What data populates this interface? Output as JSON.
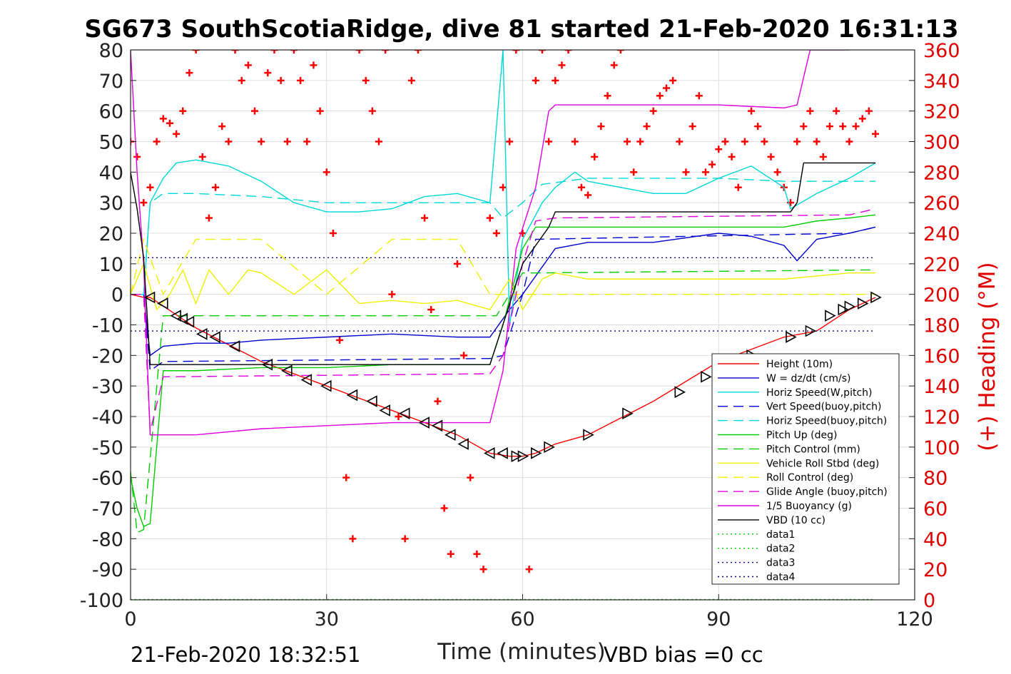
{
  "chart_data": {
    "type": "line",
    "title": "SG673 SouthScotiaRidge, dive 81 started 21-Feb-2020 16:31:13",
    "xlabel": "Time (minutes)",
    "ylabel_right": "(+) Heading (°M)",
    "xlim": [
      0,
      120
    ],
    "ylim_left": [
      -100,
      80
    ],
    "ylim_right": [
      0,
      360
    ],
    "xticks": [
      "0",
      "30",
      "60",
      "90",
      "120"
    ],
    "yticks_left": [
      "80",
      "70",
      "60",
      "50",
      "40",
      "30",
      "20",
      "10",
      "0",
      "-10",
      "-20",
      "-30",
      "-40",
      "-50",
      "-60",
      "-70",
      "-80",
      "-90",
      "-100"
    ],
    "yticks_right": [
      "360",
      "340",
      "320",
      "300",
      "280",
      "260",
      "240",
      "220",
      "200",
      "180",
      "160",
      "140",
      "120",
      "100",
      "80",
      "60",
      "40",
      "20",
      "0"
    ],
    "grid": true,
    "legend_position": "bottom-right",
    "footer_left": "21-Feb-2020 18:32:51",
    "footer_right": "VBD bias =0 cc",
    "series": [
      {
        "name": "Height (10m)",
        "color": "#ff0000",
        "style": "solid",
        "x": [
          0,
          2,
          3,
          10,
          20,
          30,
          40,
          50,
          55,
          58,
          60,
          62,
          65,
          70,
          80,
          90,
          100,
          105,
          110,
          114
        ],
        "y": [
          0,
          -1,
          -1,
          -11,
          -22,
          -30,
          -38,
          -46,
          -52,
          -53,
          -53,
          -52,
          -49,
          -46,
          -35,
          -22,
          -14,
          -12,
          -5,
          -1
        ]
      },
      {
        "name": "W = dz/dt (cm/s)",
        "color": "#0000cc",
        "style": "solid",
        "x": [
          0,
          2,
          3,
          5,
          10,
          15,
          20,
          30,
          40,
          50,
          55,
          58,
          60,
          65,
          70,
          80,
          90,
          95,
          100,
          102,
          105,
          110,
          114
        ],
        "y": [
          0,
          0,
          -20,
          -17,
          -16,
          -16,
          -15,
          -14,
          -13,
          -14,
          -14,
          -5,
          0,
          15,
          17,
          17,
          20,
          19,
          16,
          11,
          18,
          20,
          22
        ]
      },
      {
        "name": "Horiz Speed(W,pitch)",
        "color": "#00d8d8",
        "style": "solid",
        "x": [
          0,
          2,
          3,
          5,
          7,
          10,
          15,
          20,
          25,
          30,
          35,
          40,
          45,
          50,
          55,
          57,
          58,
          60,
          63,
          65,
          68,
          70,
          75,
          80,
          85,
          90,
          95,
          100,
          101,
          105,
          110,
          114
        ],
        "y": [
          0,
          0,
          30,
          38,
          43,
          44,
          42,
          37,
          30,
          27,
          27,
          28,
          32,
          33,
          30,
          80,
          -10,
          18,
          30,
          35,
          40,
          37,
          35,
          33,
          33,
          38,
          42,
          35,
          28,
          33,
          38,
          43
        ]
      },
      {
        "name": "Vert Speed(buoy,pitch)",
        "color": "#0000cc",
        "style": "dashed",
        "x": [
          0,
          2,
          3,
          5,
          55,
          57,
          60,
          62,
          110,
          114
        ],
        "y": [
          0,
          0,
          -25,
          -22,
          -21,
          -20,
          0,
          18,
          20,
          22
        ]
      },
      {
        "name": "Horiz Speed(buoy,pitch)",
        "color": "#00d8d8",
        "style": "dashed",
        "x": [
          0,
          2,
          3,
          5,
          10,
          20,
          30,
          40,
          50,
          55,
          57,
          60,
          63,
          70,
          80,
          90,
          100,
          110,
          114
        ],
        "y": [
          0,
          0,
          30,
          33,
          33,
          32,
          30,
          30,
          30,
          30,
          25,
          30,
          36,
          38,
          38,
          38,
          37,
          37,
          37
        ]
      },
      {
        "name": "Pitch Up (deg)",
        "color": "#00cc00",
        "style": "solid",
        "x": [
          0,
          1,
          2,
          3,
          5,
          10,
          20,
          30,
          40,
          50,
          55,
          57,
          60,
          62,
          65,
          70,
          80,
          90,
          100,
          105,
          110,
          114
        ],
        "y": [
          -60,
          -70,
          -76,
          -75,
          -25,
          -25,
          -24,
          -24,
          -23,
          -23,
          -23,
          -10,
          15,
          22,
          22,
          22,
          22,
          22,
          22,
          24,
          25,
          26
        ]
      },
      {
        "name": "Pitch Control (mm)",
        "color": "#00cc00",
        "style": "dashed",
        "x": [
          0,
          1,
          2,
          5,
          55,
          56,
          60,
          62,
          114
        ],
        "y": [
          -58,
          -78,
          -77,
          -7,
          -7,
          -7,
          7,
          7,
          8
        ]
      },
      {
        "name": "Vehicle Roll Stbd (deg)",
        "color": "#f0f000",
        "style": "solid",
        "x": [
          0,
          2,
          4,
          6,
          8,
          10,
          12,
          15,
          18,
          20,
          25,
          30,
          35,
          40,
          45,
          50,
          55,
          58,
          60,
          63,
          65,
          70,
          80,
          90,
          100,
          110,
          114
        ],
        "y": [
          0,
          10,
          -5,
          0,
          8,
          -3,
          8,
          0,
          8,
          7,
          0,
          8,
          -3,
          -2,
          -3,
          -2,
          -5,
          5,
          -5,
          5,
          7,
          5,
          5,
          5,
          5,
          7,
          7
        ]
      },
      {
        "name": "Roll Control (deg)",
        "color": "#f0f000",
        "style": "dashed",
        "x": [
          0,
          2,
          5,
          10,
          20,
          30,
          40,
          50,
          55,
          60,
          65,
          75,
          85,
          95,
          105,
          114
        ],
        "y": [
          0,
          18,
          0,
          18,
          18,
          0,
          18,
          18,
          0,
          0,
          0,
          0,
          0,
          0,
          0,
          0
        ]
      },
      {
        "name": "Glide Angle (buoy,pitch)",
        "color": "#dd00dd",
        "style": "dashed",
        "x": [
          0,
          2,
          3,
          5,
          55,
          57,
          60,
          62,
          65,
          110,
          114
        ],
        "y": [
          0,
          0,
          -45,
          -27,
          -26,
          -20,
          10,
          24,
          25,
          26,
          28
        ]
      },
      {
        "name": "1/5 Buoyancy (g)",
        "color": "#dd00dd",
        "style": "solid",
        "x": [
          0,
          1,
          2,
          3,
          5,
          10,
          20,
          30,
          40,
          50,
          55,
          57,
          59,
          62,
          64,
          65,
          70,
          80,
          90,
          100,
          102,
          104,
          110
        ],
        "y": [
          80,
          40,
          10,
          -46,
          -46,
          -46,
          -44,
          -43,
          -42,
          -42,
          -42,
          -25,
          15,
          35,
          60,
          62,
          62,
          62,
          62,
          61,
          62,
          80,
          80
        ]
      },
      {
        "name": "VBD (10 cc)",
        "color": "#000000",
        "style": "solid",
        "x": [
          0,
          1,
          2,
          3,
          55,
          60,
          64,
          65,
          101,
          102,
          103,
          114
        ],
        "y": [
          40,
          28,
          12,
          -23,
          -23,
          10,
          22,
          27,
          27,
          30,
          43,
          43
        ]
      },
      {
        "name": "data1",
        "color": "#00cc00",
        "style": "dotted",
        "x": [
          0,
          114
        ],
        "y": [
          -99.9,
          -99.9
        ]
      },
      {
        "name": "data2",
        "color": "#00cc00",
        "style": "dotted",
        "x": [
          0,
          114
        ],
        "y": [
          -99.9,
          -99.9
        ]
      },
      {
        "name": "data3",
        "color": "#000080",
        "style": "dotted",
        "x": [
          0,
          114
        ],
        "y": [
          12,
          12
        ]
      },
      {
        "name": "data4",
        "color": "#000080",
        "style": "dotted",
        "x": [
          0,
          114
        ],
        "y": [
          -12,
          -12
        ]
      }
    ],
    "heading_series": {
      "name": "(+) Heading (°M)",
      "color": "#ff0000",
      "marker": "+",
      "axis": "right",
      "x": [
        0,
        1,
        2,
        3,
        4,
        5,
        6,
        7,
        8,
        9,
        10,
        11,
        12,
        13,
        14,
        15,
        16,
        17,
        18,
        19,
        20,
        21,
        22,
        23,
        24,
        25,
        26,
        27,
        28,
        29,
        30,
        31,
        32,
        33,
        34,
        35,
        36,
        37,
        38,
        39,
        40,
        41,
        42,
        43,
        44,
        45,
        46,
        47,
        48,
        49,
        50,
        51,
        52,
        53,
        54,
        55,
        56,
        57,
        58,
        59,
        60,
        61,
        62,
        63,
        64,
        65,
        66,
        67,
        68,
        69,
        70,
        71,
        72,
        73,
        74,
        75,
        76,
        77,
        78,
        79,
        80,
        81,
        82,
        83,
        84,
        85,
        86,
        87,
        88,
        89,
        90,
        91,
        92,
        93,
        94,
        95,
        96,
        97,
        98,
        99,
        100,
        101,
        102,
        103,
        104,
        105,
        106,
        107,
        108,
        109,
        110,
        111,
        112,
        113,
        114
      ],
      "y": [
        300,
        290,
        260,
        270,
        300,
        315,
        312,
        305,
        320,
        345,
        360,
        290,
        250,
        270,
        310,
        300,
        360,
        340,
        350,
        320,
        300,
        345,
        360,
        340,
        300,
        360,
        340,
        300,
        350,
        320,
        280,
        240,
        170,
        80,
        40,
        360,
        340,
        320,
        300,
        360,
        200,
        120,
        40,
        340,
        360,
        250,
        190,
        130,
        60,
        30,
        220,
        160,
        80,
        30,
        20,
        250,
        240,
        270,
        300,
        360,
        240,
        20,
        340,
        360,
        300,
        340,
        350,
        360,
        300,
        270,
        265,
        290,
        310,
        330,
        350,
        360,
        300,
        280,
        300,
        310,
        320,
        330,
        335,
        340,
        300,
        280,
        310,
        330,
        280,
        285,
        295,
        300,
        290,
        270,
        300,
        320,
        310,
        300,
        290,
        280,
        270,
        260,
        300,
        310,
        320,
        300,
        290,
        310,
        320,
        310,
        300,
        310,
        315,
        320,
        305
      ]
    },
    "markers": {
      "name": "Height (10m) samples",
      "color": "#000000",
      "x": [
        3,
        5,
        7,
        8,
        9,
        11,
        13,
        16,
        21,
        24,
        27,
        30,
        34,
        37,
        39,
        42,
        45,
        47,
        49,
        51,
        55,
        57,
        59,
        60,
        62,
        64,
        70,
        76,
        84,
        88,
        95,
        101,
        104,
        107,
        109,
        110,
        112,
        114
      ],
      "y": [
        -1,
        -3,
        -7,
        -8,
        -9,
        -13,
        -14,
        -17,
        -23,
        -25,
        -28,
        -30,
        -33,
        -35,
        -38,
        -39,
        -42,
        -43,
        -46,
        -49,
        -52,
        -52,
        -53,
        -53,
        -52,
        -50,
        -46,
        -39,
        -32,
        -27,
        -20,
        -14,
        -12,
        -7,
        -5,
        -4,
        -3,
        -1
      ]
    }
  }
}
